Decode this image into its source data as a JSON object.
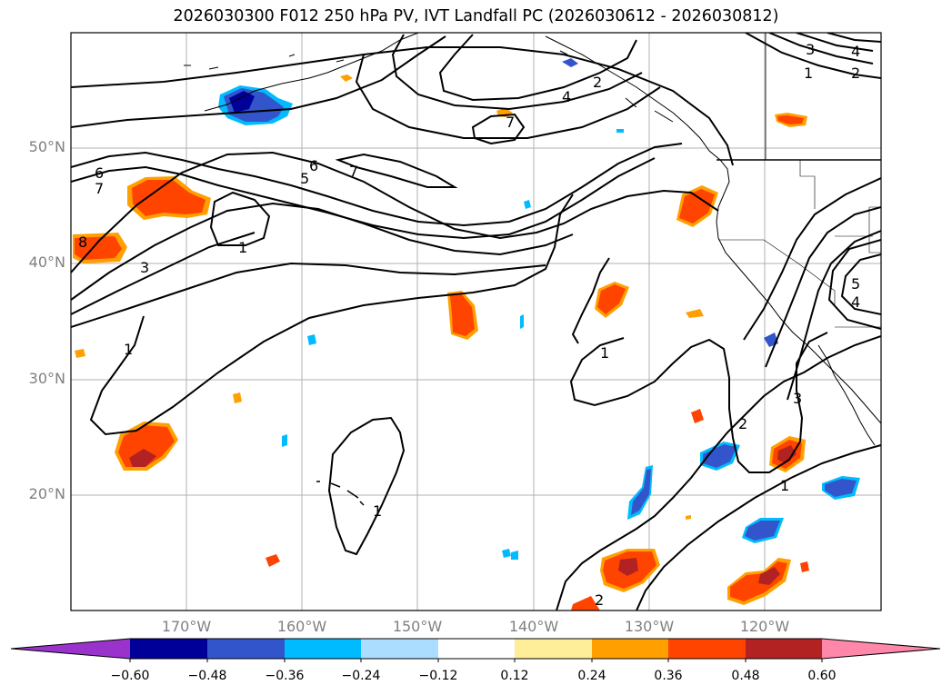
{
  "title": "2026030300 F012 250 hPa PV, IVT Landfall PC (2026030612 - 2026030812)",
  "map": {
    "lat_labels": [
      "50°N",
      "40°N",
      "30°N",
      "20°N"
    ],
    "lon_labels": [
      "170°W",
      "160°W",
      "150°W",
      "140°W",
      "130°W",
      "120°W"
    ],
    "contour_labels": [
      "1",
      "2",
      "3",
      "4",
      "5",
      "6",
      "7",
      "8"
    ]
  },
  "colorbar": {
    "colors": [
      "#9933cc",
      "#000099",
      "#3355cc",
      "#00bbff",
      "#aaddff",
      "#ffffff",
      "#ffee99",
      "#ffa000",
      "#ff4400",
      "#b22222",
      "#ff88aa"
    ],
    "tick_labels": [
      "−0.60",
      "−0.48",
      "−0.36",
      "−0.24",
      "−0.12",
      "0.12",
      "0.24",
      "0.36",
      "0.48",
      "0.60"
    ]
  },
  "colors": {
    "grid": "#b0b0b0",
    "contour": "#000000",
    "label_gray": "#808080"
  }
}
